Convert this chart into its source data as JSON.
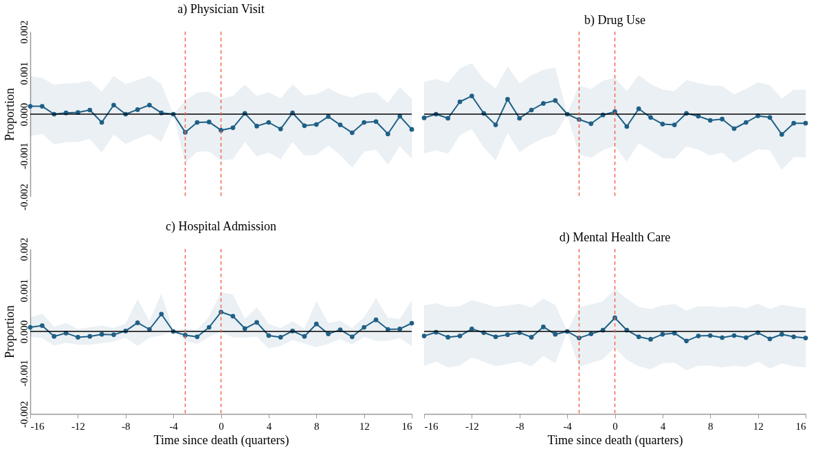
{
  "chart_data": [
    {
      "type": "line",
      "title": "a) Physician Visit",
      "ylabel": "Proportion",
      "x": [
        -16,
        -15,
        -14,
        -13,
        -12,
        -11,
        -10,
        -9,
        -8,
        -7,
        -6,
        -5,
        -4,
        -3,
        -2,
        -1,
        0,
        1,
        2,
        3,
        4,
        5,
        6,
        7,
        8,
        9,
        10,
        11,
        12,
        13,
        14,
        15,
        16
      ],
      "series": [
        {
          "color": "#1f5f86",
          "values": [
            0.00019,
            0.00019,
            0,
            3e-05,
            4e-05,
            0.0001,
            -0.0002,
            0.00022,
            0,
            0.00011,
            0.00022,
            3e-05,
            0,
            -0.00044,
            -0.0002,
            -0.00019,
            -0.00039,
            -0.00033,
            2e-05,
            -0.00029,
            -0.0002,
            -0.00036,
            3e-05,
            -0.00028,
            -0.00025,
            -6e-05,
            -0.00026,
            -0.00045,
            -0.0002,
            -0.00018,
            -0.00048,
            -5e-05,
            -0.00037
          ],
          "upper": [
            0.00092,
            0.00088,
            0.00071,
            0.00074,
            0.00076,
            0.00081,
            0.00054,
            0.00092,
            0.00073,
            0.00082,
            0.00092,
            0.00072,
            0,
            0.00032,
            0.00052,
            0.00054,
            0.00037,
            0.00044,
            0.00071,
            0.00044,
            0.00053,
            0.00038,
            0.00072,
            0.00045,
            0.00048,
            0.00063,
            0.00048,
            0.0004,
            0.00051,
            0.00052,
            0.00027,
            0.00065,
            0.00037
          ],
          "lower": [
            -0.00053,
            -0.00048,
            -0.00073,
            -0.00068,
            -0.00067,
            -0.0006,
            -0.00093,
            -0.00049,
            -0.00072,
            -0.00059,
            -0.00048,
            -0.00067,
            0,
            -0.00118,
            -0.00091,
            -0.0009,
            -0.00112,
            -0.00109,
            -0.00067,
            -0.00102,
            -0.00093,
            -0.00109,
            -0.00067,
            -0.001,
            -0.00098,
            -0.00076,
            -0.00099,
            -0.00129,
            -0.00091,
            -0.00086,
            -0.00122,
            -0.00077,
            -0.00108
          ]
        }
      ],
      "xlim": [
        -16,
        16
      ],
      "xticks": [
        -16,
        -12,
        -8,
        -4,
        0,
        4,
        8,
        12,
        16
      ],
      "ylim": [
        -0.002,
        0.002
      ],
      "yticks": [
        -0.002,
        -0.001,
        {
          "value": 0,
          "label": "0.000"
        },
        0.001,
        0.002
      ],
      "ref_lines": [
        {
          "axis": "y",
          "value": 0,
          "color": "#000000",
          "line_style": "solid"
        },
        {
          "axis": "x",
          "value": -3,
          "color": "#f4694c",
          "line_style": "dashed"
        },
        {
          "axis": "x",
          "value": 0,
          "color": "#f4694c",
          "line_style": "dashed"
        }
      ],
      "marker": "circle",
      "grid": false,
      "tick_labels": "y"
    },
    {
      "type": "line",
      "title": "b) Drug Use",
      "x": [
        -16,
        -15,
        -14,
        -13,
        -12,
        -11,
        -10,
        -9,
        -8,
        -7,
        -6,
        -5,
        -4,
        -3,
        -2,
        -1,
        0,
        1,
        2,
        3,
        4,
        5,
        6,
        7,
        8,
        9,
        10,
        11,
        12,
        13,
        14,
        15,
        16
      ],
      "series": [
        {
          "color": "#1f5f86",
          "values": [
            -9e-05,
            0,
            -0.0001,
            0.0003,
            0.00044,
            2e-05,
            -0.00026,
            0.00036,
            -0.0001,
            0.0001,
            0.00026,
            0.00033,
            0,
            -0.00013,
            -0.00023,
            -2e-05,
            6e-05,
            -0.0003,
            0.00013,
            -8e-05,
            -0.00024,
            -0.00026,
            2e-05,
            -5e-05,
            -0.00015,
            -0.00012,
            -0.00035,
            -0.0002,
            -4e-05,
            -8e-05,
            -0.00049,
            -0.00022,
            -0.00022
          ],
          "upper": [
            0.00078,
            0.00085,
            0.00076,
            0.00111,
            0.00123,
            0.00084,
            0.00062,
            0.00116,
            0.00074,
            0.00094,
            0.00107,
            0.00113,
            0,
            0.00069,
            0.00061,
            0.00081,
            0.00088,
            0.00055,
            0.00094,
            0.00073,
            0.00059,
            0.00056,
            0.00082,
            0.00075,
            0.00069,
            0.00068,
            0.00048,
            0.00061,
            0.00077,
            0.0007,
            0.00037,
            0.00059,
            0.00059
          ],
          "lower": [
            -0.00095,
            -0.00087,
            -0.00096,
            -0.00051,
            -0.00036,
            -0.0008,
            -0.00112,
            -0.00045,
            -0.00092,
            -0.00073,
            -0.00058,
            -0.00049,
            0,
            -0.00097,
            -0.00106,
            -0.00087,
            -0.00077,
            -0.00115,
            -0.0007,
            -0.00088,
            -0.00106,
            -0.00108,
            -0.00078,
            -0.00086,
            -0.001,
            -0.00093,
            -0.00118,
            -0.00101,
            -0.00085,
            -0.00087,
            -0.00135,
            -0.00104,
            -0.00105
          ]
        }
      ],
      "xlim": [
        -16,
        16
      ],
      "xticks": [
        -16,
        -12,
        -8,
        -4,
        0,
        4,
        8,
        12,
        16
      ],
      "ylim": [
        -0.002,
        0.002
      ],
      "ref_lines": [
        {
          "axis": "y",
          "value": 0,
          "color": "#000000",
          "line_style": "solid"
        },
        {
          "axis": "x",
          "value": -3,
          "color": "#f4694c",
          "line_style": "dashed"
        },
        {
          "axis": "x",
          "value": 0,
          "color": "#f4694c",
          "line_style": "dashed"
        }
      ],
      "marker": "circle",
      "grid": false,
      "tick_labels": false
    },
    {
      "type": "line",
      "title": "c) Hospital Admission",
      "ylabel": "Proportion",
      "xlabel": "Time since death (quarters)",
      "x": [
        -16,
        -15,
        -14,
        -13,
        -12,
        -11,
        -10,
        -9,
        -8,
        -7,
        -6,
        -5,
        -4,
        -3,
        -2,
        -1,
        0,
        1,
        2,
        3,
        4,
        5,
        6,
        7,
        8,
        9,
        10,
        11,
        12,
        13,
        14,
        15,
        16
      ],
      "series": [
        {
          "color": "#1f5f86",
          "values": [
            0.0001,
            0.00014,
            -0.00012,
            -4e-05,
            -0.00014,
            -0.00012,
            -7e-05,
            -8e-05,
            1e-05,
            0.00021,
            5e-05,
            0.00042,
            0,
            -9e-05,
            -0.00013,
            0.0001,
            0.00047,
            0.00037,
            7e-05,
            0.00022,
            -0.0001,
            -0.00014,
            1e-05,
            -0.00012,
            0.00018,
            -6e-05,
            4e-05,
            -0.00013,
            0.0001,
            0.00028,
            5e-05,
            6e-05,
            0.0002
          ],
          "upper": [
            0.00034,
            0.00043,
            0.00011,
            0.0002,
            6e-05,
            0.0001,
            0.00014,
            8e-05,
            0.00019,
            0.00077,
            0.00025,
            0.00091,
            0,
            7e-05,
            4e-05,
            0.00035,
            0.00095,
            0.00089,
            0.0003,
            0.00058,
            0.00018,
            8e-05,
            0.00024,
            7e-05,
            0.00073,
            0.0002,
            0.00026,
            8e-05,
            0.00034,
            0.0008,
            0.00033,
            0.0003,
            0.00075
          ],
          "lower": [
            -0.00013,
            -0.00016,
            -0.00034,
            -0.00027,
            -0.00032,
            -0.00032,
            -0.00028,
            -0.00024,
            -0.00015,
            -0.00035,
            -0.00015,
            -9e-05,
            0,
            -0.00023,
            -0.0003,
            -0.00013,
            -1e-05,
            -0.00014,
            -0.00015,
            -0.00013,
            -0.00041,
            -0.00035,
            -0.00021,
            -0.00029,
            -0.00038,
            -0.0003,
            -0.00018,
            -0.00032,
            -0.00013,
            -0.00023,
            -0.00023,
            -0.00016,
            -0.00035
          ]
        }
      ],
      "xlim": [
        -16,
        16
      ],
      "xticks": [
        -16,
        -12,
        -8,
        -4,
        0,
        4,
        8,
        12,
        16
      ],
      "ylim": [
        -0.002,
        0.002
      ],
      "yticks": [
        -0.002,
        -0.001,
        {
          "value": 0,
          "label": "0.000"
        },
        0.001,
        0.002
      ],
      "ref_lines": [
        {
          "axis": "y",
          "value": 0,
          "color": "#000000",
          "line_style": "solid"
        },
        {
          "axis": "x",
          "value": -3,
          "color": "#f4694c",
          "line_style": "dashed"
        },
        {
          "axis": "x",
          "value": 0,
          "color": "#f4694c",
          "line_style": "dashed"
        }
      ],
      "marker": "circle",
      "grid": false
    },
    {
      "type": "line",
      "title": "d) Mental Health Care",
      "xlabel": "Time since death (quarters)",
      "x": [
        -16,
        -15,
        -14,
        -13,
        -12,
        -11,
        -10,
        -9,
        -8,
        -7,
        -6,
        -5,
        -4,
        -3,
        -2,
        -1,
        0,
        1,
        2,
        3,
        4,
        5,
        6,
        7,
        8,
        9,
        10,
        11,
        12,
        13,
        14,
        15,
        16
      ],
      "series": [
        {
          "color": "#1f5f86",
          "values": [
            -0.00011,
            -2e-05,
            -0.00014,
            -0.00011,
            6e-05,
            -3e-05,
            -0.00013,
            -8e-05,
            -3e-05,
            -0.00014,
            0.00011,
            -7e-05,
            0,
            -0.00016,
            -6e-05,
            3e-05,
            0.00033,
            3e-05,
            -0.00013,
            -0.00019,
            -7e-05,
            -4e-05,
            -0.00023,
            -0.00011,
            -0.0001,
            -0.00015,
            -0.0001,
            -0.00015,
            -3e-05,
            -0.00018,
            -7e-05,
            -0.00013,
            -0.00016
          ],
          "upper": [
            0.00063,
            0.00068,
            0.00059,
            0.00061,
            0.00076,
            0.00068,
            0.00059,
            0.00063,
            0.00067,
            0.00058,
            0.00079,
            0.00064,
            0,
            0.00058,
            0.00065,
            0.00073,
            0.00103,
            0.00079,
            0.00059,
            0.00054,
            0.00063,
            0.00066,
            0.0005,
            0.00061,
            0.00061,
            0.00058,
            0.00061,
            0.00056,
            0.00067,
            0.00054,
            0.00064,
            0.0006,
            0.00056
          ],
          "lower": [
            -0.00083,
            -0.00073,
            -0.00087,
            -0.00082,
            -0.00063,
            -0.00073,
            -0.00084,
            -0.00079,
            -0.00073,
            -0.00084,
            -0.00059,
            -0.00077,
            0,
            -0.00086,
            -0.00076,
            -0.00067,
            -0.00039,
            -0.00069,
            -0.00084,
            -0.00092,
            -0.00077,
            -0.00075,
            -0.00094,
            -0.00083,
            -0.00083,
            -0.00087,
            -0.00083,
            -0.00086,
            -0.00073,
            -0.0009,
            -0.00077,
            -0.00084,
            -0.00087
          ]
        }
      ],
      "xlim": [
        -16,
        16
      ],
      "xticks": [
        -16,
        -12,
        -8,
        -4,
        0,
        4,
        8,
        12,
        16
      ],
      "ylim": [
        -0.002,
        0.002
      ],
      "ref_lines": [
        {
          "axis": "y",
          "value": 0,
          "color": "#000000",
          "line_style": "solid"
        },
        {
          "axis": "x",
          "value": -3,
          "color": "#f4694c",
          "line_style": "dashed"
        },
        {
          "axis": "x",
          "value": 0,
          "color": "#f4694c",
          "line_style": "dashed"
        }
      ],
      "marker": "circle",
      "grid": false,
      "tick_labels": "x"
    }
  ]
}
